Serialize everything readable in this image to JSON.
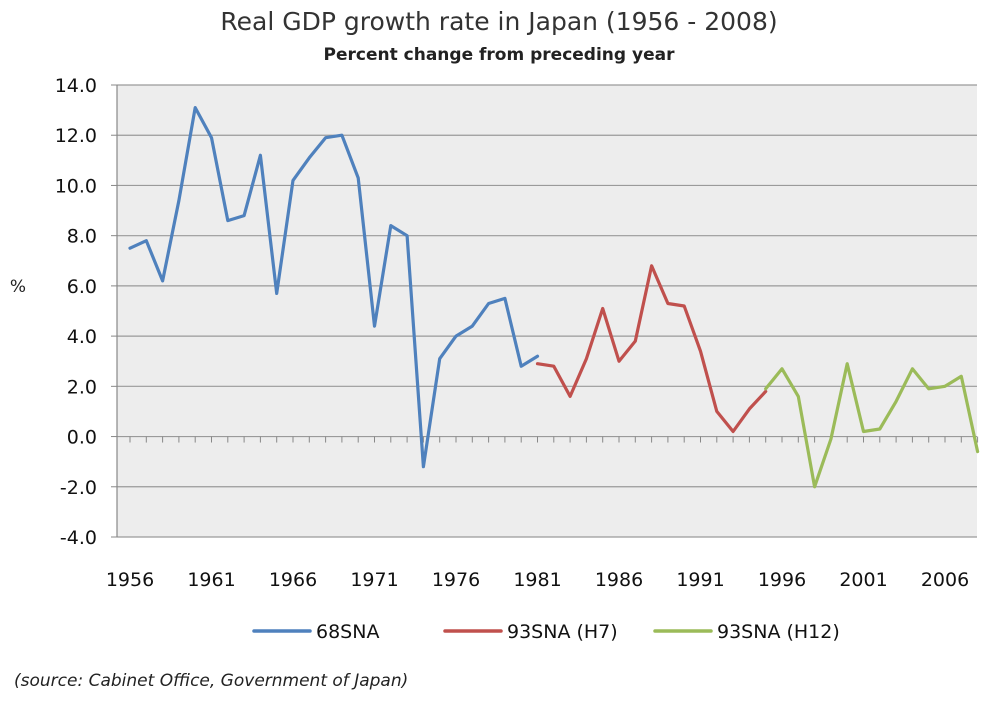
{
  "chart_data": {
    "type": "line",
    "title": "Real GDP growth rate in Japan (1956 - 2008)",
    "subtitle": "Percent change from preceding year",
    "ylabel": "%",
    "xlabel": "",
    "ylim": [
      -4.0,
      14.0
    ],
    "y_ticks": [
      "14.0",
      "12.0",
      "10.0",
      "8.0",
      "6.0",
      "4.0",
      "2.0",
      "0.0",
      "-2.0",
      "-4.0"
    ],
    "negative_tick_color": "#e03030",
    "x_ticks": [
      "1956",
      "1961",
      "1966",
      "1971",
      "1976",
      "1981",
      "1986",
      "1991",
      "1996",
      "2001",
      "2006"
    ],
    "grid": true,
    "legend_position": "bottom",
    "series": [
      {
        "name": "68SNA",
        "color": "#4f81bd",
        "x": [
          1956,
          1957,
          1958,
          1959,
          1960,
          1961,
          1962,
          1963,
          1964,
          1965,
          1966,
          1967,
          1968,
          1969,
          1970,
          1971,
          1972,
          1973,
          1974,
          1975,
          1976,
          1977,
          1978,
          1979,
          1980,
          1981
        ],
        "values": [
          7.5,
          7.8,
          6.2,
          9.4,
          13.1,
          11.9,
          8.6,
          8.8,
          11.2,
          5.7,
          10.2,
          11.1,
          11.9,
          12.0,
          10.3,
          4.4,
          8.4,
          8.0,
          -1.2,
          3.1,
          4.0,
          4.4,
          5.3,
          5.5,
          2.8,
          3.2
        ]
      },
      {
        "name": "93SNA (H7)",
        "color": "#c0504d",
        "x": [
          1981,
          1982,
          1983,
          1984,
          1985,
          1986,
          1987,
          1988,
          1989,
          1990,
          1991,
          1992,
          1993,
          1994,
          1995
        ],
        "values": [
          2.9,
          2.8,
          1.6,
          3.1,
          5.1,
          3.0,
          3.8,
          6.8,
          5.3,
          5.2,
          3.4,
          1.0,
          0.2,
          1.1,
          1.8
        ]
      },
      {
        "name": "93SNA (H12)",
        "color": "#9bbb59",
        "x": [
          1995,
          1996,
          1997,
          1998,
          1999,
          2000,
          2001,
          2002,
          2003,
          2004,
          2005,
          2006,
          2007,
          2008
        ],
        "values": [
          1.9,
          2.7,
          1.6,
          -2.0,
          -0.1,
          2.9,
          0.2,
          0.3,
          1.4,
          2.7,
          1.9,
          2.0,
          2.4,
          -0.6
        ]
      }
    ]
  },
  "source_note": "(source:  Cabinet Office, Government of Japan)"
}
